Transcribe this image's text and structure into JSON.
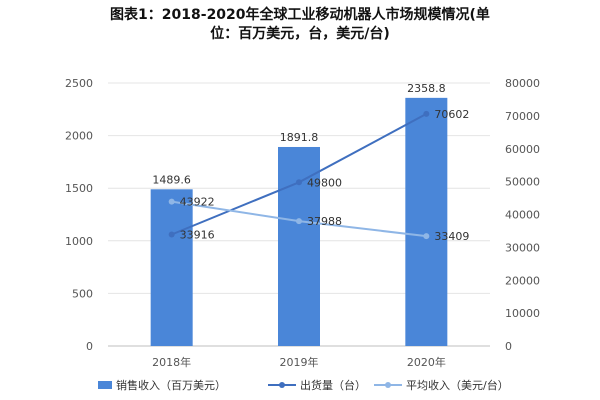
{
  "chart_data": {
    "type": "bar",
    "title_line1": "图表1：2018-2020年全球工业移动机器人市场规模情况(单",
    "title_line2": "位：百万美元，台，美元/台)",
    "categories": [
      "2018年",
      "2019年",
      "2020年"
    ],
    "left_axis": {
      "ylim": [
        0,
        2500
      ],
      "ticks": [
        "0",
        "500",
        "1000",
        "1500",
        "2000",
        "2500"
      ]
    },
    "right_axis": {
      "ylim": [
        0,
        80000
      ],
      "ticks": [
        "0",
        "10000",
        "20000",
        "30000",
        "40000",
        "50000",
        "60000",
        "70000",
        "80000"
      ]
    },
    "series": [
      {
        "name": "销售收入（百万美元）",
        "kind": "bar",
        "axis": "left",
        "values": [
          1489.6,
          1891.8,
          2358.8
        ],
        "labels": [
          "1489.6",
          "1891.8",
          "2358.8"
        ]
      },
      {
        "name": "出货量（台）",
        "kind": "line",
        "axis": "right",
        "values": [
          33916,
          49800,
          70602
        ],
        "labels": [
          "33916",
          "49800",
          "70602"
        ]
      },
      {
        "name": "平均收入（美元/台）",
        "kind": "line",
        "axis": "right",
        "values": [
          43922,
          37988,
          33409
        ],
        "labels": [
          "43922",
          "37988",
          "33409"
        ]
      }
    ],
    "grid": true,
    "legend": "bottom"
  },
  "colors": {
    "bar": "#4a86d8",
    "shipments": "#3f6fbf",
    "avg_revenue": "#8fb6e6",
    "grid": "#e4e4e4",
    "axis_text": "#555555",
    "label_text": "#333333"
  }
}
